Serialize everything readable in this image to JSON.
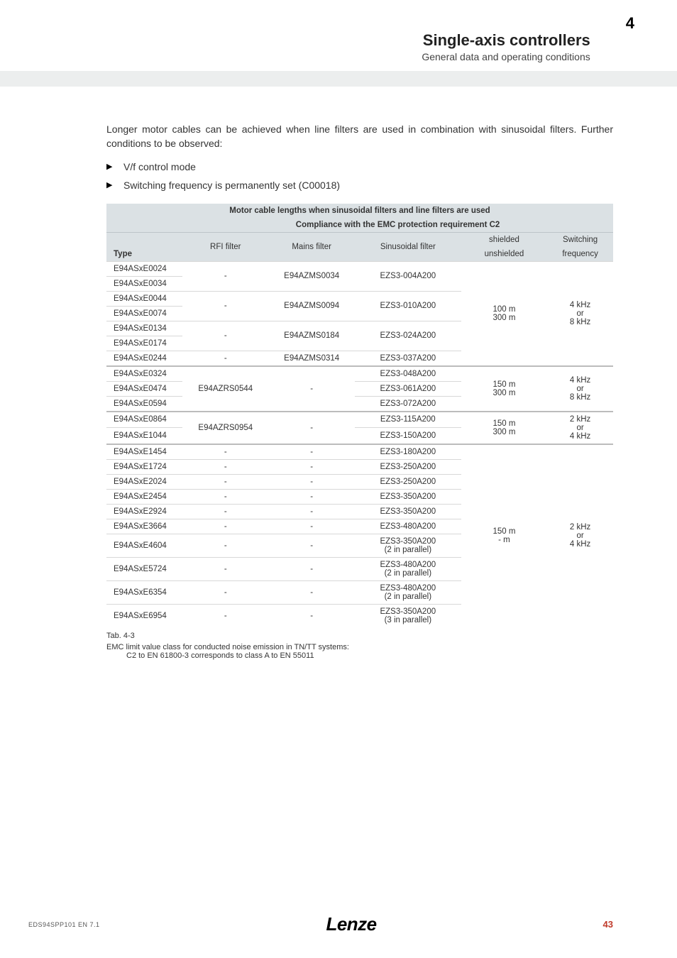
{
  "header": {
    "title": "Single-axis controllers",
    "subtitle": "General data and operating conditions",
    "section_number": "4"
  },
  "intro_paragraph": "Longer motor cables can be achieved when line filters are used in combination with sinusoidal filters. Further conditions to be observed:",
  "bullets": [
    "V/f control mode",
    "Switching frequency is permanently set (C00018)"
  ],
  "table": {
    "title": "Motor cable lengths when sinusoidal filters and line filters are used",
    "compliance_header": "Compliance with the EMC protection requirement C2",
    "columns": {
      "type": "Type",
      "rfi": "RFI filter",
      "mains": "Mains filter",
      "sinus": "Sinusoidal filter",
      "shielded": "shielded",
      "unshielded": "unshielded",
      "switching": "Switching",
      "frequency": "frequency"
    },
    "groups": [
      {
        "types": [
          "E94ASxE0024",
          "E94ASxE0034",
          "E94ASxE0044",
          "E94ASxE0074",
          "E94ASxE0134",
          "E94ASxE0174",
          "E94ASxE0244"
        ],
        "rfi": [
          "-",
          "-",
          "-",
          "-"
        ],
        "mains": [
          "E94AZMS0034",
          "E94AZMS0094",
          "E94AZMS0184",
          "E94AZMS0314"
        ],
        "sinus": [
          "EZS3-004A200",
          "EZS3-010A200",
          "EZS3-024A200",
          "EZS3-037A200"
        ],
        "cable": [
          "100 m",
          "300 m"
        ],
        "freq": [
          "4 kHz",
          "or",
          "8 kHz"
        ]
      },
      {
        "types": [
          "E94ASxE0324",
          "E94ASxE0474",
          "E94ASxE0594"
        ],
        "rfi": "E94AZRS0544",
        "mains": "-",
        "sinus": [
          "EZS3-048A200",
          "EZS3-061A200",
          "EZS3-072A200"
        ],
        "cable": [
          "150 m",
          "300 m"
        ],
        "freq": [
          "4 kHz",
          "or",
          "8 kHz"
        ]
      },
      {
        "types": [
          "E94ASxE0864",
          "E94ASxE1044"
        ],
        "rfi": "E94AZRS0954",
        "mains": "-",
        "sinus": [
          "EZS3-115A200",
          "EZS3-150A200"
        ],
        "cable": [
          "150 m",
          "300 m"
        ],
        "freq": [
          "2 kHz",
          "or",
          "4 kHz"
        ]
      },
      {
        "types": [
          "E94ASxE1454",
          "E94ASxE1724",
          "E94ASxE2024",
          "E94ASxE2454",
          "E94ASxE2924",
          "E94ASxE3664",
          "E94ASxE4604",
          "E94ASxE5724",
          "E94ASxE6354",
          "E94ASxE6954"
        ],
        "sinus": [
          "EZS3-180A200",
          "EZS3-250A200",
          "EZS3-250A200",
          "EZS3-350A200",
          "EZS3-350A200",
          "EZS3-480A200",
          "EZS3-350A200",
          "EZS3-480A200",
          "EZS3-480A200",
          "EZS3-350A200"
        ],
        "parallel": [
          "(2 in parallel)",
          "(2 in parallel)",
          "(2 in parallel)",
          "(3 in parallel)"
        ],
        "cable": [
          "150 m",
          "- m"
        ],
        "freq": [
          "2 kHz",
          "or",
          "4 kHz"
        ]
      }
    ],
    "caption": "Tab. 4-3",
    "note_line1": "EMC limit value class for conducted noise emission in TN/TT systems:",
    "note_line2": "C2 to EN 61800-3 corresponds to class A to EN 55011"
  },
  "footer": {
    "doc_code": "EDS94SPP101  EN   7.1",
    "logo": "Lenze",
    "page": "43"
  },
  "colors": {
    "header_grey": "#eceeee",
    "table_header": "#dbe1e4",
    "row_border": "#d8d8d8",
    "accent": "#c03a2b"
  }
}
